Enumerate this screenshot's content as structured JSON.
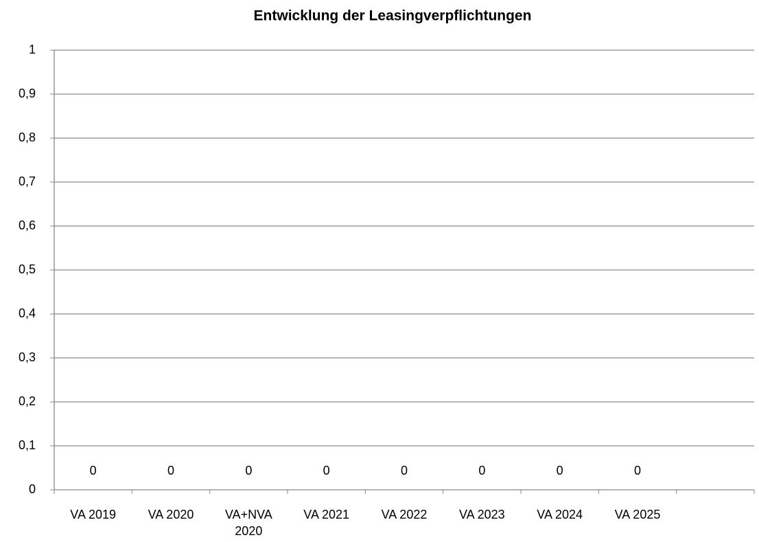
{
  "chart_data": {
    "type": "bar",
    "title": "Entwicklung der Leasingverpflichtungen",
    "categories": [
      "VA 2019",
      "VA 2020",
      "VA+NVA 2020",
      "VA 2021",
      "VA 2022",
      "VA 2023",
      "VA 2024",
      "VA 2025",
      null
    ],
    "values": [
      0,
      0,
      0,
      0,
      0,
      0,
      0,
      0,
      null
    ],
    "ylim": [
      0,
      1
    ],
    "yticks": [
      0,
      {
        "value": 0.1,
        "label": "0,1"
      },
      {
        "value": 0.2,
        "label": "0,2"
      },
      {
        "value": 0.3,
        "label": "0,3"
      },
      {
        "value": 0.4,
        "label": "0,4"
      },
      {
        "value": 0.5,
        "label": "0,5"
      },
      {
        "value": 0.6,
        "label": "0,6"
      },
      {
        "value": 0.7,
        "label": "0,7"
      },
      {
        "value": 0.8,
        "label": "0,8"
      },
      {
        "value": 0.9,
        "label": "0,9"
      },
      1
    ],
    "grid": true
  }
}
